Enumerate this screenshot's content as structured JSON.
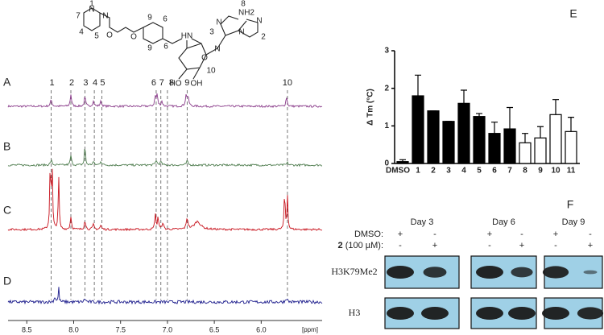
{
  "structure": {
    "labels": [
      "1",
      "7",
      "4",
      "5",
      "N",
      "N",
      "O",
      "O",
      "9",
      "6",
      "9",
      "6",
      "HN",
      "N",
      "N",
      "N",
      "N",
      "3",
      "2",
      "8",
      "NH2",
      "O",
      "10",
      "HO",
      "OH"
    ]
  },
  "nmr": {
    "spectra": [
      {
        "name": "A",
        "color": "#8b3d8b"
      },
      {
        "name": "B",
        "color": "#4f7d4f"
      },
      {
        "name": "C",
        "color": "#c8141e"
      },
      {
        "name": "D",
        "color": "#1c1c8c"
      }
    ],
    "peaks": {
      "labels": [
        "1",
        "2",
        "3",
        "4",
        "5",
        "6",
        "7",
        "8",
        "9",
        "10"
      ],
      "ppm": [
        8.24,
        8.03,
        7.88,
        7.78,
        7.7,
        7.12,
        7.07,
        7.0,
        6.79,
        5.72
      ]
    },
    "xlim": [
      8.7,
      5.35
    ],
    "xticks": [
      8.5,
      {
        "value": 8,
        "label": "8.0"
      },
      7.5,
      {
        "value": 7,
        "label": "7.0"
      },
      6.5,
      {
        "value": 6,
        "label": "6.0"
      }
    ],
    "x_label": "[ppm]"
  },
  "chart_data": {
    "type": "bar",
    "panel_label": "E",
    "y_label": "Δ Tm (°C)",
    "categories": [
      "DMSO",
      "1",
      "2",
      "3",
      "4",
      "5",
      "6",
      "7",
      "8",
      "9",
      "10",
      "11"
    ],
    "values": [
      0.05,
      1.8,
      1.4,
      1.12,
      1.6,
      1.25,
      0.8,
      0.92,
      0.55,
      0.68,
      1.3,
      0.85
    ],
    "errors": [
      0.05,
      0.55,
      0,
      0,
      0.35,
      0.08,
      0.3,
      0.57,
      0.25,
      0.3,
      0.4,
      0.38
    ],
    "colors": [
      "#000000",
      "#000000",
      "#000000",
      "#000000",
      "#000000",
      "#000000",
      "#000000",
      "#000000",
      "#ffffff",
      "#ffffff",
      "#ffffff",
      "#ffffff"
    ],
    "ylim": [
      0,
      3
    ],
    "yticks": [
      0,
      1,
      2,
      3
    ]
  },
  "blot": {
    "panel_label": "F",
    "days": [
      "Day 3",
      "Day 6",
      "Day 9"
    ],
    "dmso_label": "DMSO:",
    "compound": "2",
    "compound_rest": "(100 µM):",
    "dmso_signs": [
      "+",
      "-",
      "+",
      "-",
      "+",
      "-"
    ],
    "compound_signs": [
      "-",
      "+",
      "-",
      "+",
      "-",
      "+"
    ],
    "proteins": [
      "H3K79Me2",
      "H3"
    ]
  }
}
